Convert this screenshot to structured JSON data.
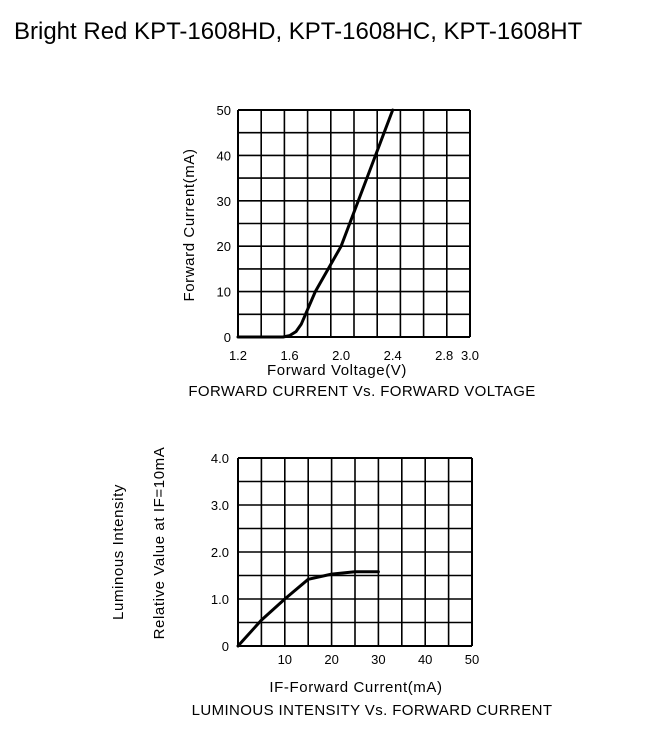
{
  "page_title": "Bright Red KPT-1608HD, KPT-1608HC, KPT-1608HT",
  "chart_data": [
    {
      "type": "line",
      "xlabel": "Forward Voltage(V)",
      "ylabel": "Forward Current(mA)",
      "caption": "FORWARD CURRENT Vs. FORWARD VOLTAGE",
      "xlim": [
        1.2,
        3.0
      ],
      "ylim": [
        0,
        50
      ],
      "x_ticks": [
        "1.2",
        "1.6",
        "2.0",
        "2.4",
        "2.8",
        "3.0"
      ],
      "x_tick_values": [
        1.2,
        1.6,
        2.0,
        2.4,
        2.8,
        3.0
      ],
      "y_ticks": [
        "0",
        "10",
        "20",
        "30",
        "40",
        "50"
      ],
      "y_tick_values": [
        0,
        10,
        20,
        30,
        40,
        50
      ],
      "grid": true,
      "series": [
        {
          "values": [
            [
              1.2,
              0
            ],
            [
              1.55,
              0
            ],
            [
              1.6,
              0.3
            ],
            [
              1.65,
              1.2
            ],
            [
              1.69,
              2.8
            ],
            [
              1.8,
              10
            ],
            [
              2.0,
              20
            ],
            [
              2.2,
              35
            ],
            [
              2.4,
              50
            ]
          ]
        }
      ]
    },
    {
      "type": "line",
      "xlabel": "IF-Forward Current(mA)",
      "ylabel": "Relative Value at IF=10mA",
      "ylabel2": "Luminous Intensity",
      "caption": "LUMINOUS INTENSITY Vs. FORWARD CURRENT",
      "xlim": [
        0,
        50
      ],
      "ylim": [
        0,
        4.0
      ],
      "x_ticks": [
        "10",
        "20",
        "30",
        "40",
        "50"
      ],
      "x_tick_values": [
        10,
        20,
        30,
        40,
        50
      ],
      "y_ticks": [
        "0",
        "1.0",
        "2.0",
        "3.0",
        "4.0"
      ],
      "y_tick_values": [
        0,
        1.0,
        2.0,
        3.0,
        4.0
      ],
      "grid": true,
      "series": [
        {
          "values": [
            [
              0,
              0
            ],
            [
              5,
              0.55
            ],
            [
              10,
              1.0
            ],
            [
              15,
              1.42
            ],
            [
              20,
              1.53
            ],
            [
              25,
              1.58
            ],
            [
              30,
              1.58
            ]
          ]
        }
      ]
    }
  ]
}
